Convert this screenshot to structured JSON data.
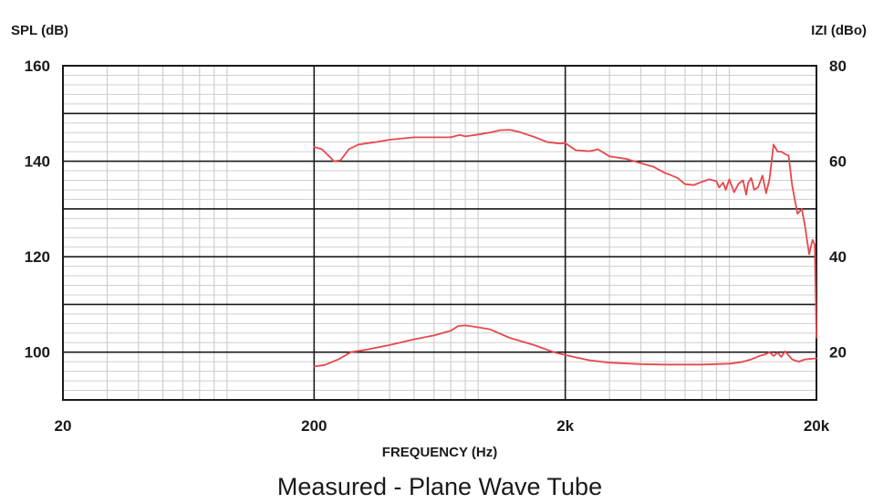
{
  "chart_data": {
    "type": "line",
    "title": "Measured - Plane Wave Tube",
    "xlabel": "FREQUENCY (Hz)",
    "ylabel_left": "SPL (dB)",
    "ylabel_right": "IZI (dBo)",
    "x_scale": "log",
    "xlim": [
      20,
      20000
    ],
    "ylim_left": [
      90,
      160
    ],
    "ylim_right": [
      10,
      80
    ],
    "grid": true,
    "x_ticks": [
      {
        "value": 20,
        "label": "20"
      },
      {
        "value": 200,
        "label": "200"
      },
      {
        "value": 2000,
        "label": "2k"
      },
      {
        "value": 20000,
        "label": "20k"
      }
    ],
    "y_ticks_left": [
      {
        "value": 100,
        "label": "100"
      },
      {
        "value": 120,
        "label": "120"
      },
      {
        "value": 140,
        "label": "140"
      },
      {
        "value": 160,
        "label": "160"
      }
    ],
    "y_ticks_right": [
      {
        "value": 20,
        "label": "20"
      },
      {
        "value": 40,
        "label": "40"
      },
      {
        "value": 60,
        "label": "60"
      },
      {
        "value": 80,
        "label": "80"
      }
    ],
    "colors": {
      "curve": "#e8474c",
      "grid": "#cfcfcf",
      "major_grid": "#1a1a1a"
    },
    "series": [
      {
        "axis": "left",
        "x": [
          200,
          215,
          235,
          240,
          255,
          275,
          300,
          350,
          400,
          500,
          600,
          700,
          760,
          800,
          900,
          1000,
          1100,
          1200,
          1300,
          1500,
          1700,
          1900,
          2000,
          2200,
          2500,
          2700,
          3000,
          3500,
          4000,
          4500,
          5000,
          5200,
          5600,
          6000,
          6500,
          7000,
          7500,
          8000,
          8200,
          8500,
          8700,
          9000,
          9400,
          9800,
          10200,
          10500,
          10700,
          11000,
          11300,
          11700,
          12200,
          12600,
          13000,
          13500,
          14000,
          14500,
          15000,
          15500,
          16000,
          16800,
          17500,
          18000,
          18700,
          19300,
          19700,
          20000
        ],
        "y": [
          143,
          142.5,
          140.5,
          140,
          140.2,
          142.5,
          143.5,
          144,
          144.5,
          145,
          145,
          145,
          145.5,
          145.2,
          145.6,
          146,
          146.5,
          146.6,
          146.2,
          145.1,
          144,
          143.7,
          143.8,
          142.3,
          142.1,
          142.5,
          141,
          140.5,
          139.6,
          138.8,
          137.5,
          137.2,
          136.5,
          135.2,
          135,
          135.7,
          136.2,
          135.8,
          134.5,
          135.5,
          134,
          136.2,
          133.5,
          135.3,
          136,
          133,
          135.5,
          136.5,
          134,
          134.5,
          137,
          133.3,
          136.2,
          143.5,
          142,
          142,
          141.5,
          141.2,
          135,
          129,
          130,
          126.5,
          120.5,
          123.5,
          122.5,
          103
        ]
      },
      {
        "axis": "right",
        "x": [
          200,
          220,
          250,
          280,
          320,
          400,
          500,
          600,
          700,
          750,
          800,
          900,
          1000,
          1200,
          1500,
          1800,
          2000,
          2500,
          3000,
          4000,
          5000,
          7000,
          9000,
          10000,
          11000,
          12000,
          12500,
          13000,
          13500,
          14000,
          14500,
          15000,
          16000,
          17000,
          18000,
          20000
        ],
        "y": [
          17,
          17.3,
          18.5,
          20,
          20.5,
          21.5,
          22.7,
          23.5,
          24.5,
          25.5,
          25.6,
          25.2,
          24.8,
          23,
          21.5,
          20,
          19.4,
          18.3,
          17.8,
          17.5,
          17.4,
          17.4,
          17.6,
          17.9,
          18.5,
          19.3,
          19.5,
          20,
          19.2,
          19.9,
          19,
          20.2,
          18.5,
          18,
          18.5,
          18.7
        ]
      }
    ]
  }
}
